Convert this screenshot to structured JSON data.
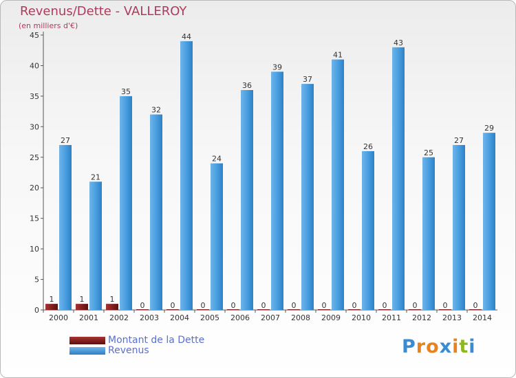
{
  "title": "Revenus/Dette - VALLEROY",
  "subtitle": "(en milliers d'€)",
  "chart_data": {
    "type": "bar",
    "categories": [
      "2000",
      "2001",
      "2002",
      "2003",
      "2004",
      "2005",
      "2006",
      "2007",
      "2008",
      "2009",
      "2010",
      "2011",
      "2012",
      "2013",
      "2014"
    ],
    "series": [
      {
        "name": "Montant de la Dette",
        "color": "#7a1a1a",
        "values": [
          1,
          1,
          1,
          0,
          0,
          0,
          0,
          0,
          0,
          0,
          0,
          0,
          0,
          0,
          0
        ]
      },
      {
        "name": "Revenus",
        "color": "#3a90d6",
        "values": [
          27,
          21,
          35,
          32,
          44,
          24,
          36,
          39,
          37,
          41,
          26,
          43,
          25,
          27,
          29
        ]
      }
    ],
    "yticks": [
      0,
      5,
      10,
      15,
      20,
      25,
      30,
      35,
      40,
      45
    ],
    "ylim": [
      0,
      45
    ],
    "grid": false,
    "legend": "bottom-left"
  },
  "legend": {
    "debt_label": "Montant de la Dette",
    "revenue_label": "Revenus"
  },
  "logo": {
    "letters": [
      {
        "ch": "P",
        "color": "#3a8bd0"
      },
      {
        "ch": "r",
        "color": "#e8821e"
      },
      {
        "ch": "o",
        "color": "#e8821e"
      },
      {
        "ch": "x",
        "color": "#3a8bd0"
      },
      {
        "ch": "i",
        "color": "#e8821e"
      },
      {
        "ch": "t",
        "color": "#8fb820"
      },
      {
        "ch": "i",
        "color": "#3a8bd0"
      }
    ]
  }
}
